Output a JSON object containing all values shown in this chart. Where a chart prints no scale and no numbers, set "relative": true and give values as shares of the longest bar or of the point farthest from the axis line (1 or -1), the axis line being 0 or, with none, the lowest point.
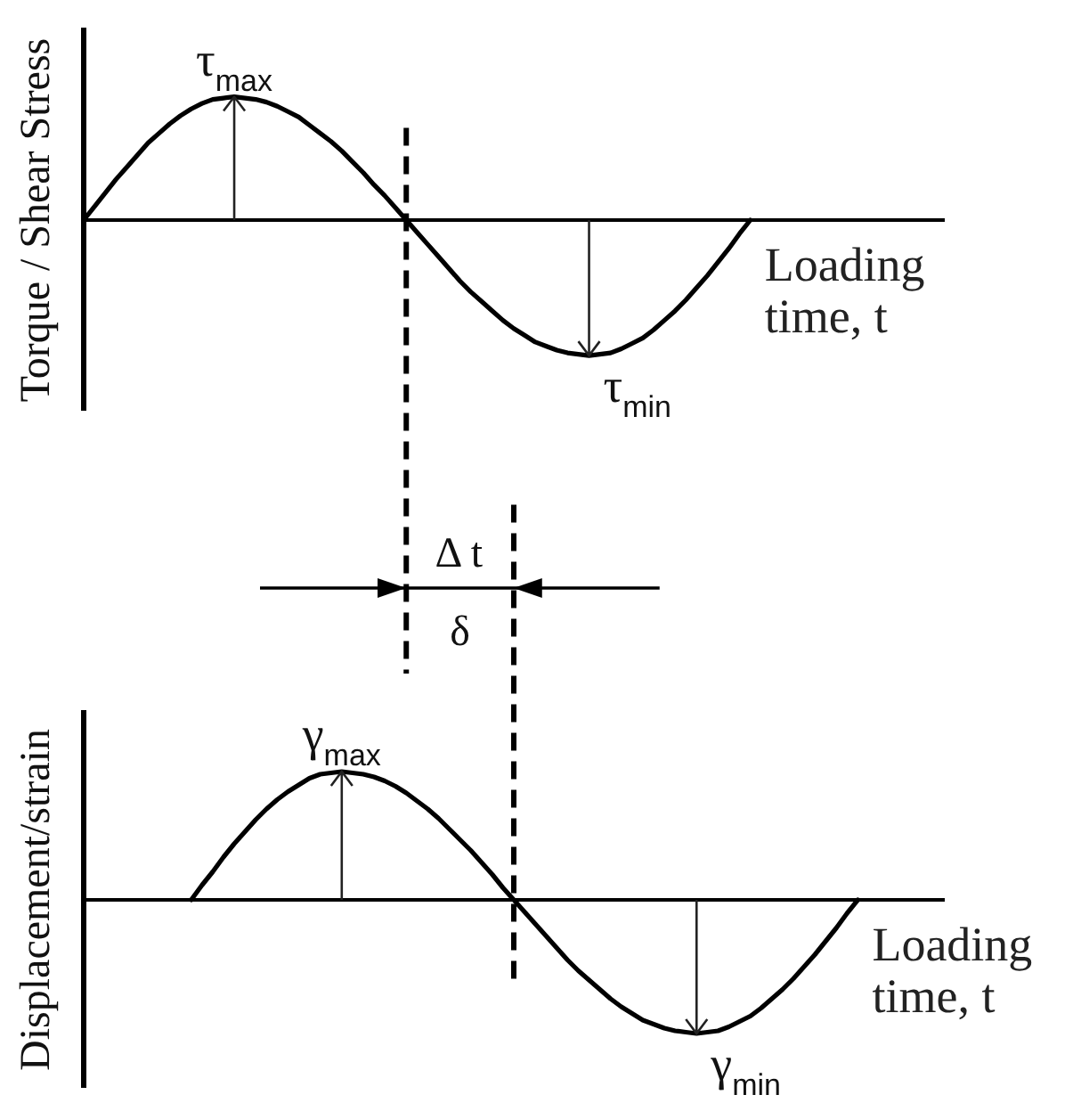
{
  "chart_data": [
    {
      "type": "line",
      "ylabel": "Torque / Shear Stress",
      "xlabel": "Loading time, t",
      "relative": true,
      "marker": "none",
      "line_style": "solid",
      "categories": [
        null,
        null,
        null,
        null,
        null,
        null,
        null,
        null,
        null,
        null,
        null,
        null,
        null,
        null,
        null,
        null,
        null,
        null,
        null,
        null,
        null,
        null,
        null,
        null,
        null,
        null,
        null,
        null,
        null,
        null,
        null,
        null,
        null,
        null,
        null,
        null,
        null,
        null,
        null,
        null,
        null,
        null,
        null,
        null,
        null,
        null,
        null,
        null,
        null,
        null,
        null,
        null,
        null,
        null,
        null,
        null,
        null,
        null,
        null,
        null,
        null,
        null,
        null,
        null,
        null,
        null,
        null,
        null,
        null,
        null,
        null,
        null,
        null,
        null,
        null,
        null,
        null,
        null,
        null,
        null,
        null
      ],
      "series": [
        {
          "color": "#000000",
          "values": [
            0,
            0.1,
            0.2,
            0.3,
            0.39,
            0.48,
            0.57,
            0.64,
            0.71,
            0.77,
            0.82,
            0.86,
            0.89,
            0.9,
            0.91,
            0.9,
            0.89,
            0.87,
            0.84,
            0.8,
            0.76,
            0.7,
            0.64,
            0.58,
            0.51,
            0.43,
            0.35,
            0.26,
            0.18,
            0.09,
            0,
            -0.09,
            -0.18,
            -0.27,
            -0.36,
            -0.45,
            -0.53,
            -0.6,
            -0.67,
            -0.74,
            -0.8,
            -0.85,
            -0.9,
            -0.93,
            -0.96,
            -0.98,
            -0.99,
            -1,
            -0.99,
            -0.98,
            -0.95,
            -0.91,
            -0.87,
            -0.81,
            -0.74,
            -0.67,
            -0.59,
            -0.5,
            -0.41,
            -0.31,
            -0.21,
            -0.1,
            0,
            null,
            null,
            null,
            null,
            null,
            null,
            null,
            null,
            null,
            null,
            null,
            null,
            null,
            null,
            null,
            null,
            null,
            null
          ]
        }
      ],
      "annotations": [
        {
          "text": "τ$_{max}$",
          "y": 0.91
        },
        "τ$_{min}$"
      ]
    },
    {
      "type": "line",
      "ylabel": "Displacement/strain",
      "xlabel": "Loading time, t",
      "relative": true,
      "marker": "none",
      "line_style": "solid",
      "categories": [
        null,
        null,
        null,
        null,
        null,
        null,
        null,
        null,
        null,
        null,
        null,
        null,
        null,
        null,
        null,
        null,
        null,
        null,
        null,
        null,
        null,
        null,
        null,
        null,
        null,
        null,
        null,
        null,
        null,
        null,
        null,
        null,
        null,
        null,
        null,
        null,
        null,
        null,
        null,
        null,
        null,
        null,
        null,
        null,
        null,
        null,
        null,
        null,
        null,
        null,
        null,
        null,
        null,
        null,
        null,
        null,
        null,
        null,
        null,
        null,
        null,
        null,
        null,
        null,
        null,
        null,
        null,
        null,
        null,
        null,
        null,
        null,
        null,
        null,
        null,
        null,
        null,
        null,
        null,
        null,
        null
      ],
      "series": [
        {
          "color": "#000000",
          "values": [
            null,
            null,
            null,
            null,
            null,
            null,
            null,
            null,
            null,
            null,
            0,
            0.11,
            0.21,
            0.32,
            0.42,
            0.51,
            0.6,
            0.68,
            0.75,
            0.81,
            0.86,
            0.91,
            0.94,
            0.95,
            0.96,
            0.95,
            0.94,
            0.92,
            0.89,
            0.85,
            0.8,
            0.74,
            0.68,
            0.61,
            0.53,
            0.45,
            0.37,
            0.28,
            0.19,
            0.09,
            0,
            -0.09,
            -0.18,
            -0.27,
            -0.36,
            -0.45,
            -0.53,
            -0.6,
            -0.67,
            -0.74,
            -0.8,
            -0.85,
            -0.9,
            -0.93,
            -0.96,
            -0.98,
            -0.99,
            -1,
            -0.99,
            -0.98,
            -0.95,
            -0.91,
            -0.87,
            -0.81,
            -0.74,
            -0.67,
            -0.59,
            -0.5,
            -0.41,
            -0.31,
            -0.21,
            -0.1,
            0,
            null,
            null,
            null,
            null,
            null,
            null,
            null,
            null
          ]
        }
      ],
      "annotations": [
        {
          "text": "γ$_{max}$",
          "y": 0.96
        },
        "γ$_{min}$",
        "Δ t",
        "δ"
      ]
    }
  ]
}
